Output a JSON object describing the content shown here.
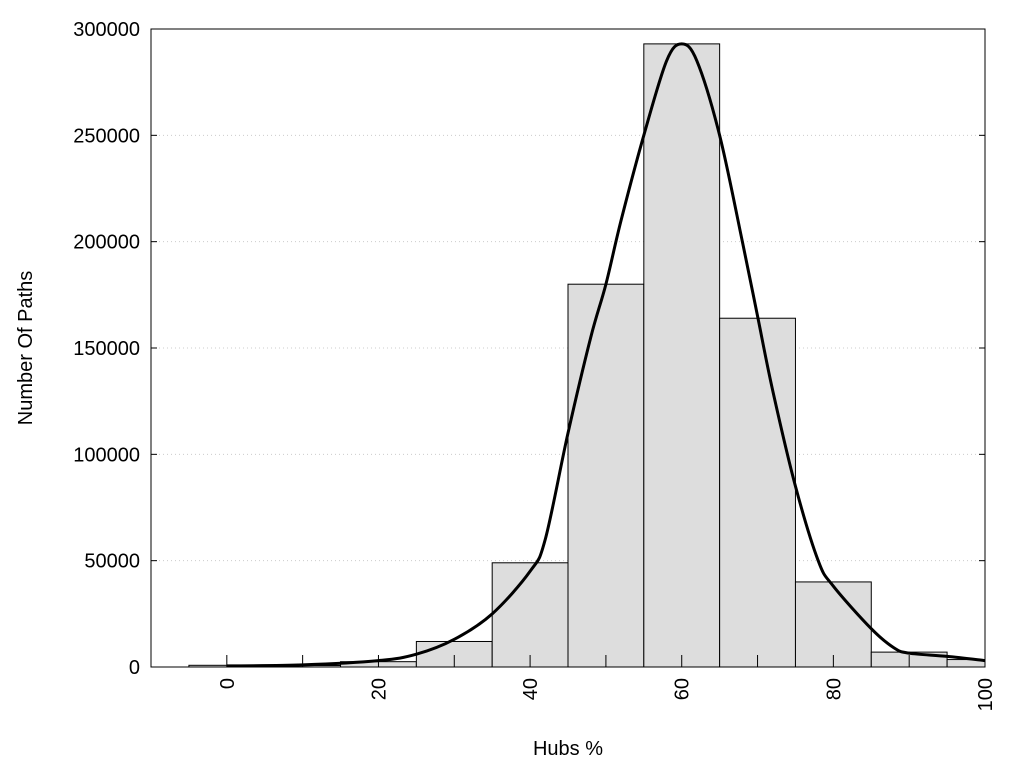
{
  "chart_data": {
    "type": "bar",
    "xlabel": "Hubs %",
    "ylabel": "Number Of Paths",
    "xlim": [
      -10,
      100
    ],
    "ylim": [
      0,
      300000
    ],
    "grid": "horizontal dotted",
    "bar_color": "#dddddd",
    "curve_color": "#000000",
    "x_tick_labels": [
      "0",
      "20",
      "40",
      "60",
      "80",
      "100"
    ],
    "x_ticks_minor": [
      0,
      10,
      20,
      30,
      40,
      50,
      60,
      70,
      80,
      90,
      100
    ],
    "y_tick_labels": [
      "0",
      "50000",
      "100000",
      "150000",
      "200000",
      "250000",
      "300000"
    ],
    "bars": {
      "centers": [
        0,
        10,
        20,
        30,
        40,
        50,
        60,
        70,
        80,
        90,
        100
      ],
      "values": [
        800,
        700,
        2500,
        12000,
        49000,
        180000,
        293000,
        164000,
        40000,
        7000,
        3500
      ]
    },
    "curve": {
      "x": [
        0,
        10,
        20,
        25,
        30,
        35,
        40,
        42,
        45,
        48,
        50,
        52,
        55,
        58,
        60,
        62,
        65,
        68,
        70,
        72,
        75,
        78,
        80,
        85,
        88,
        90,
        95,
        100
      ],
      "y": [
        500,
        1000,
        3000,
        6000,
        13000,
        25000,
        45000,
        60000,
        110000,
        155000,
        180000,
        210000,
        250000,
        285000,
        293000,
        285000,
        250000,
        200000,
        165000,
        130000,
        85000,
        50000,
        38000,
        18000,
        9000,
        6500,
        5000,
        3000
      ]
    }
  }
}
